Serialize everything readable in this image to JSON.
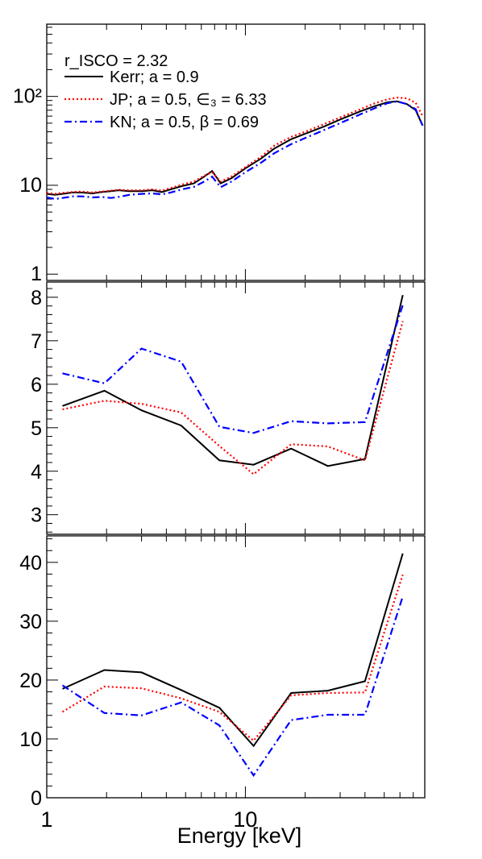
{
  "chart_data": [
    {
      "type": "line",
      "yscale": "log",
      "xscale": "log",
      "xlim": [
        1,
        80
      ],
      "ylim": [
        0.85,
        650
      ],
      "ytick_labels": [
        "1",
        "10",
        "10²"
      ],
      "annotation": "r_ISCO = 2.32",
      "legend_position": "top-left",
      "series": [
        {
          "name": "Kerr; a = 0.9",
          "color": "#000000",
          "style": "solid",
          "x": [
            1.0,
            1.1,
            1.2,
            1.35,
            1.5,
            1.7,
            1.9,
            2.1,
            2.3,
            2.6,
            3.0,
            3.4,
            3.8,
            4.2,
            4.8,
            5.5,
            6.2,
            6.8,
            7.5,
            8.5,
            10,
            12,
            14,
            17,
            20,
            25,
            30,
            38,
            45,
            52,
            58,
            65,
            72,
            78
          ],
          "y": [
            8.0,
            7.8,
            8.0,
            8.3,
            8.3,
            8.1,
            8.4,
            8.6,
            8.8,
            8.6,
            8.6,
            8.8,
            8.4,
            9.0,
            9.8,
            10.5,
            12.5,
            14.5,
            10.5,
            12.0,
            15.5,
            20,
            26,
            33,
            38,
            46,
            55,
            68,
            78,
            86,
            88,
            82,
            70,
            47
          ]
        },
        {
          "name": "JP; a = 0.5, ∈₃ = 6.33",
          "color": "#ff0000",
          "style": "dotted",
          "x": [
            1.0,
            1.1,
            1.2,
            1.35,
            1.5,
            1.7,
            1.9,
            2.1,
            2.3,
            2.6,
            3.0,
            3.4,
            3.8,
            4.2,
            4.8,
            5.5,
            6.2,
            6.8,
            7.5,
            8.5,
            10,
            12,
            14,
            17,
            20,
            25,
            30,
            38,
            45,
            52,
            58,
            65,
            72,
            78
          ],
          "y": [
            8.2,
            8.0,
            8.2,
            8.4,
            8.5,
            8.3,
            8.5,
            8.7,
            8.9,
            8.8,
            8.8,
            9.0,
            8.7,
            9.3,
            10.2,
            11.0,
            12.8,
            14.0,
            11.0,
            12.5,
            16.0,
            21,
            28,
            35,
            40,
            49,
            58,
            72,
            84,
            93,
            97,
            95,
            85,
            60
          ]
        },
        {
          "name": "KN; a = 0.5, β = 0.69",
          "color": "#0000ff",
          "style": "dashdot",
          "x": [
            1.0,
            1.1,
            1.2,
            1.35,
            1.5,
            1.7,
            1.9,
            2.1,
            2.3,
            2.6,
            3.0,
            3.4,
            3.8,
            4.2,
            4.8,
            5.5,
            6.2,
            6.8,
            7.5,
            8.5,
            10,
            12,
            14,
            17,
            20,
            25,
            30,
            38,
            45,
            52,
            58,
            65,
            72,
            78
          ],
          "y": [
            7.3,
            7.0,
            7.2,
            7.5,
            7.5,
            7.3,
            7.4,
            7.2,
            7.4,
            7.8,
            8.0,
            8.1,
            7.9,
            8.3,
            9.0,
            9.6,
            11.0,
            12.5,
            9.5,
            11.0,
            14.0,
            18,
            23,
            29,
            34,
            42,
            50,
            63,
            74,
            84,
            88,
            82,
            72,
            47
          ]
        }
      ]
    },
    {
      "type": "line",
      "xscale": "log",
      "xlim": [
        1,
        80
      ],
      "ylim": [
        2.55,
        8.35
      ],
      "yticks": [
        3,
        4,
        5,
        6,
        7,
        8
      ],
      "series": [
        {
          "name": "Kerr; a = 0.9",
          "color": "#000000",
          "style": "solid",
          "x": [
            1.2,
            1.95,
            3.0,
            4.75,
            7.4,
            11.0,
            17.0,
            26.0,
            40.0,
            62.0
          ],
          "y": [
            5.5,
            5.85,
            5.4,
            5.05,
            4.25,
            4.15,
            4.52,
            4.12,
            4.28,
            8.05
          ]
        },
        {
          "name": "JP; a = 0.5, ∈₃ = 6.33",
          "color": "#ff0000",
          "style": "dotted",
          "x": [
            1.2,
            1.95,
            3.0,
            4.75,
            7.4,
            11.0,
            17.0,
            26.0,
            40.0,
            62.0
          ],
          "y": [
            5.42,
            5.62,
            5.55,
            5.35,
            4.58,
            3.93,
            4.62,
            4.57,
            4.25,
            7.45
          ]
        },
        {
          "name": "KN; a = 0.5, β = 0.69",
          "color": "#0000ff",
          "style": "dashdot",
          "x": [
            1.2,
            1.95,
            3.0,
            4.75,
            7.4,
            11.0,
            17.0,
            26.0,
            40.0,
            62.0
          ],
          "y": [
            6.25,
            6.02,
            6.82,
            6.52,
            5.02,
            4.88,
            5.15,
            5.1,
            5.13,
            7.82
          ]
        }
      ]
    },
    {
      "type": "line",
      "xscale": "log",
      "xlim": [
        1,
        80
      ],
      "ylim": [
        0,
        44.5
      ],
      "yticks": [
        0,
        10,
        20,
        30,
        40
      ],
      "xtick_labels": [
        "1",
        "10"
      ],
      "xlabel": "Energy [keV]",
      "series": [
        {
          "name": "Kerr; a = 0.9",
          "color": "#000000",
          "style": "solid",
          "x": [
            1.2,
            1.95,
            3.0,
            4.75,
            7.4,
            11.0,
            17.0,
            26.0,
            40.0,
            62.0
          ],
          "y": [
            18.5,
            21.7,
            21.3,
            18.3,
            15.3,
            8.8,
            17.8,
            18.2,
            19.8,
            41.5
          ]
        },
        {
          "name": "JP; a = 0.5, ∈₃ = 6.33",
          "color": "#ff0000",
          "style": "dotted",
          "x": [
            1.2,
            1.95,
            3.0,
            4.75,
            7.4,
            11.0,
            17.0,
            26.0,
            40.0,
            62.0
          ],
          "y": [
            14.6,
            18.9,
            18.6,
            16.9,
            14.6,
            9.7,
            17.4,
            17.8,
            17.9,
            37.9
          ]
        },
        {
          "name": "KN; a = 0.5, β = 0.69",
          "color": "#0000ff",
          "style": "dashdot",
          "x": [
            1.2,
            1.95,
            3.0,
            4.75,
            7.4,
            11.0,
            17.0,
            26.0,
            40.0,
            62.0
          ],
          "y": [
            19.1,
            14.4,
            14.0,
            16.2,
            12.3,
            3.8,
            13.2,
            14.1,
            14.1,
            34.2
          ]
        }
      ]
    }
  ]
}
